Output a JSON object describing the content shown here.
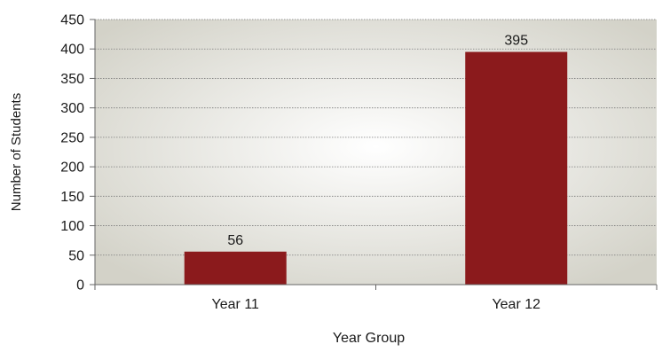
{
  "chart_data": {
    "type": "bar",
    "title": "",
    "xlabel": "Year Group",
    "ylabel": "Number of Students",
    "categories": [
      "Year 11",
      "Year 12"
    ],
    "values": [
      56,
      395
    ],
    "data_labels": [
      "56",
      "395"
    ],
    "ylim": [
      0,
      450
    ],
    "yticks": [
      0,
      50,
      100,
      150,
      200,
      250,
      300,
      350,
      400,
      450
    ],
    "ytick_labels": [
      "0",
      "50",
      "100",
      "150",
      "200",
      "250",
      "300",
      "350",
      "400",
      "450"
    ],
    "grid": true,
    "legend": "none",
    "colors": {
      "bar": "#8b1a1c",
      "plot_bg_center": "#ffffff",
      "plot_bg_edge": "#d3d2c8",
      "gridline": "#7a7a7a",
      "axis": "#666666"
    }
  }
}
